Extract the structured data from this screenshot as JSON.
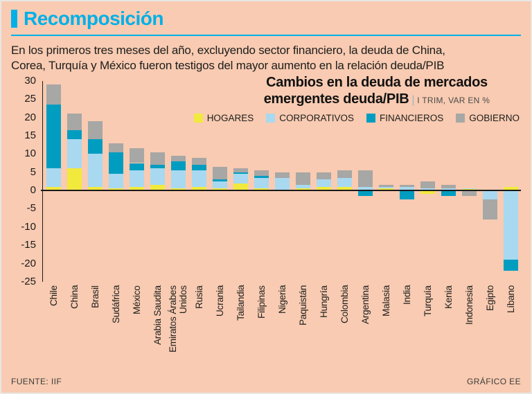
{
  "page": {
    "title": "Recomposición",
    "intro_lines": [
      "En los primeros tres meses del año, excluyendo sector financiero, la deuda de China,",
      "Corea, Turquía y México fueron testigos del mayor aumento en la relación deuda/PIB"
    ],
    "source": "FUENTE: IIF",
    "credit": "GRÁFICO EE",
    "colors": {
      "background": "#f8cbb2",
      "accent_cyan": "#00b0e8",
      "hogares_yellow": "#f2e93d",
      "corporativos_lightblue": "#a8d9f0",
      "financieros_teal": "#009dc1",
      "gobierno_gray": "#a7a7a5"
    }
  },
  "chart_data": {
    "type": "bar",
    "stacked": true,
    "title": "Cambios en la deuda de mercados emergentes deuda/PIB",
    "sep": "|",
    "subtitle": "I TRIM, VAR EN %",
    "legend_position": "top-right",
    "grid": false,
    "ylim": [
      -25,
      30
    ],
    "yticks": [
      30,
      25,
      20,
      15,
      10,
      5,
      0,
      -5,
      -10,
      -15,
      -20,
      -25
    ],
    "categories": [
      "Chile",
      "China",
      "Brasil",
      "Sudáfrica",
      "México",
      "Arabia Saudita",
      "Emiratos Árabes\nUnidos",
      "Rusia",
      "Ucrania",
      "Tailandia",
      "Filipinas",
      "Nigeria",
      "Paquistán",
      "Hungría",
      "Colombia",
      "Argentina",
      "Malasia",
      "India",
      "Turquía",
      "Kenia",
      "Indonesia",
      "Egipto",
      "Líbano"
    ],
    "series": [
      {
        "name": "HOGARES",
        "color": "#f2e93d",
        "values": [
          1,
          6,
          1,
          0.5,
          1,
          1.5,
          0.5,
          1,
          0.5,
          2,
          0.5,
          0,
          0.5,
          1,
          1,
          0,
          0.5,
          0,
          -1,
          0,
          0.3,
          0,
          1
        ]
      },
      {
        "name": "CORPORATIVOS",
        "color": "#a8d9f0",
        "values": [
          5,
          8,
          9,
          4,
          4.5,
          4.5,
          5,
          4.5,
          2,
          2.5,
          3,
          3.5,
          1,
          2,
          2.5,
          1,
          0.5,
          1,
          0.5,
          0.5,
          0.3,
          -2.5,
          -19
        ]
      },
      {
        "name": "FINANCIEROS",
        "color": "#009dc1",
        "values": [
          17.5,
          2.5,
          4,
          6,
          2,
          1,
          2.5,
          1.5,
          0.5,
          0.5,
          0.5,
          0,
          0,
          0,
          0,
          -1.5,
          0,
          -2.5,
          0,
          -1.5,
          0,
          0,
          -3
        ]
      },
      {
        "name": "GOBIERNO",
        "color": "#a7a7a5",
        "values": [
          5.5,
          4.5,
          5,
          2.5,
          4,
          3.5,
          1.5,
          2,
          3.5,
          1,
          1.5,
          1.5,
          3.5,
          2,
          2,
          4.5,
          0.5,
          0.5,
          2,
          1,
          -1.5,
          -5.5,
          0
        ]
      }
    ]
  }
}
